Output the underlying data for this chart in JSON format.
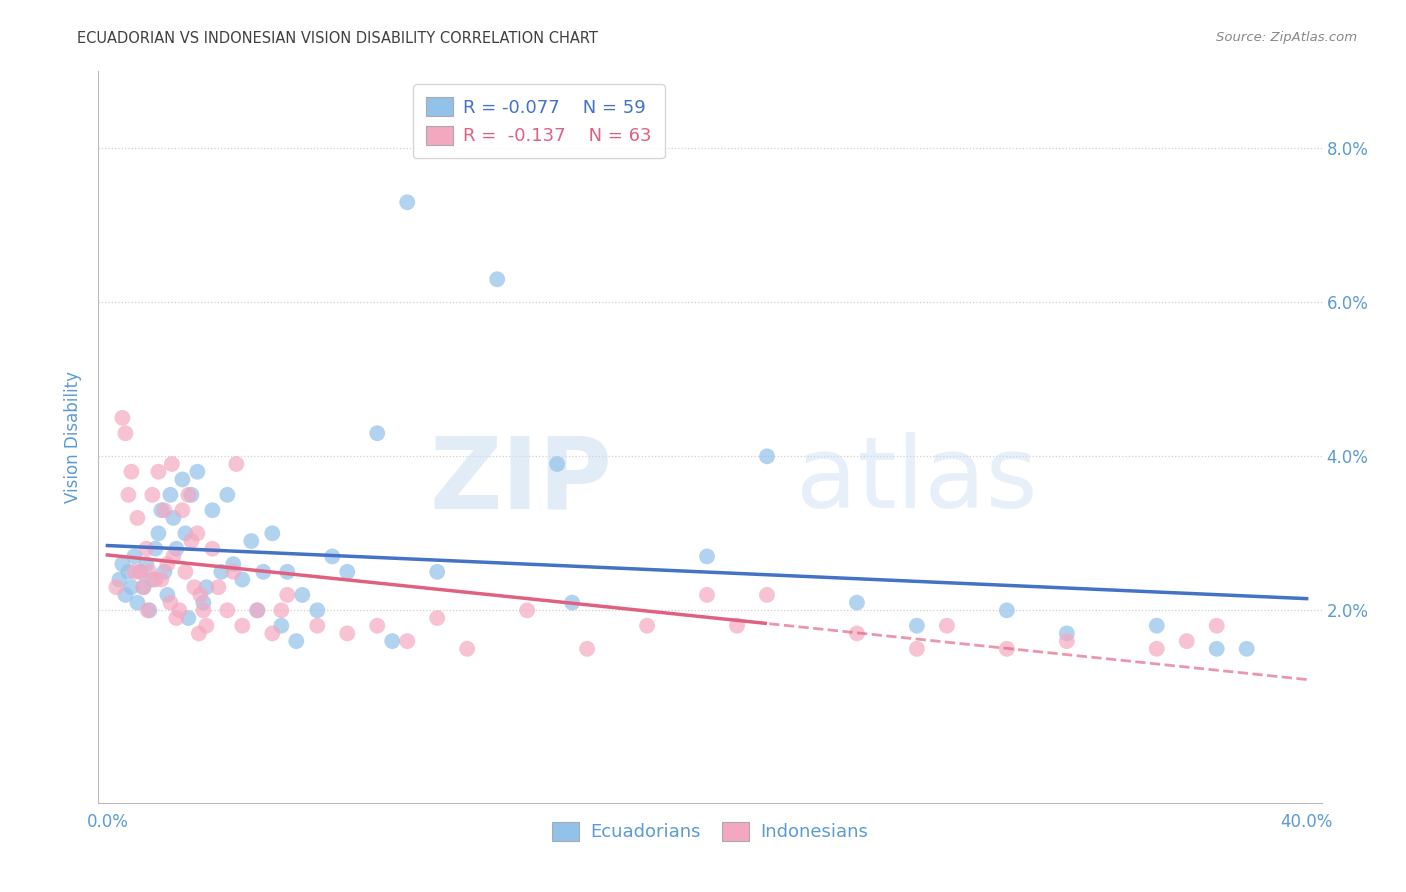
{
  "title": "ECUADORIAN VS INDONESIAN VISION DISABILITY CORRELATION CHART",
  "source": "Source: ZipAtlas.com",
  "ylabel": "Vision Disability",
  "watermark_zip": "ZIP",
  "watermark_atlas": "atlas",
  "xlim": [
    0.0,
    40.0
  ],
  "ylim": [
    0.0,
    9.0
  ],
  "yticks": [
    2.0,
    4.0,
    6.0,
    8.0
  ],
  "ytick_labels": [
    "2.0%",
    "4.0%",
    "6.0%",
    "8.0%"
  ],
  "xticks": [
    0.0,
    10.0,
    20.0,
    30.0,
    40.0
  ],
  "xtick_labels": [
    "0.0%",
    "",
    "",
    "",
    "40.0%"
  ],
  "legend_blue_label": "Ecuadorians",
  "legend_pink_label": "Indonesians",
  "R_blue": -0.077,
  "N_blue": 59,
  "R_pink": -0.137,
  "N_pink": 63,
  "blue_color": "#92C1E9",
  "pink_color": "#F4A8C0",
  "blue_line_color": "#4472C4",
  "pink_line_color": "#E06080",
  "background_color": "#FFFFFF",
  "grid_color": "#D0D0D0",
  "title_color": "#404040",
  "axis_label_color": "#5B9BD5",
  "tick_label_color": "#5B9BD5",
  "source_color": "#888888",
  "pink_dash_start": 22.0,
  "ecuadorians_x": [
    0.4,
    0.5,
    0.6,
    0.7,
    0.8,
    0.9,
    1.0,
    1.1,
    1.2,
    1.3,
    1.4,
    1.5,
    1.6,
    1.7,
    1.8,
    1.9,
    2.0,
    2.1,
    2.2,
    2.3,
    2.5,
    2.6,
    2.8,
    3.0,
    3.2,
    3.5,
    3.8,
    4.0,
    4.2,
    4.5,
    5.0,
    5.2,
    5.5,
    5.8,
    6.0,
    6.3,
    6.5,
    7.0,
    7.5,
    8.0,
    9.0,
    9.5,
    10.0,
    11.0,
    13.0,
    15.0,
    15.5,
    20.0,
    22.0,
    25.0,
    27.0,
    30.0,
    32.0,
    35.0,
    37.0,
    38.0,
    4.8,
    3.3,
    2.7
  ],
  "ecuadorians_y": [
    2.4,
    2.6,
    2.2,
    2.5,
    2.3,
    2.7,
    2.1,
    2.5,
    2.3,
    2.6,
    2.0,
    2.4,
    2.8,
    3.0,
    3.3,
    2.5,
    2.2,
    3.5,
    3.2,
    2.8,
    3.7,
    3.0,
    3.5,
    3.8,
    2.1,
    3.3,
    2.5,
    3.5,
    2.6,
    2.4,
    2.0,
    2.5,
    3.0,
    1.8,
    2.5,
    1.6,
    2.2,
    2.0,
    2.7,
    2.5,
    4.3,
    1.6,
    7.3,
    2.5,
    6.3,
    3.9,
    2.1,
    2.7,
    4.0,
    2.1,
    1.8,
    2.0,
    1.7,
    1.8,
    1.5,
    1.5,
    2.9,
    2.3,
    1.9
  ],
  "indonesians_x": [
    0.3,
    0.5,
    0.6,
    0.7,
    0.8,
    0.9,
    1.0,
    1.1,
    1.2,
    1.3,
    1.4,
    1.5,
    1.6,
    1.7,
    1.8,
    1.9,
    2.0,
    2.1,
    2.2,
    2.3,
    2.4,
    2.5,
    2.6,
    2.7,
    2.8,
    2.9,
    3.0,
    3.1,
    3.2,
    3.3,
    3.5,
    3.7,
    4.0,
    4.2,
    4.5,
    5.0,
    5.5,
    6.0,
    7.0,
    8.0,
    9.0,
    10.0,
    11.0,
    12.0,
    14.0,
    16.0,
    18.0,
    20.0,
    22.0,
    25.0,
    27.0,
    28.0,
    30.0,
    32.0,
    35.0,
    36.0,
    37.0,
    1.35,
    2.15,
    3.05,
    4.3,
    5.8,
    21.0
  ],
  "indonesians_y": [
    2.3,
    4.5,
    4.3,
    3.5,
    3.8,
    2.5,
    3.2,
    2.5,
    2.3,
    2.8,
    2.5,
    3.5,
    2.4,
    3.8,
    2.4,
    3.3,
    2.6,
    2.1,
    2.7,
    1.9,
    2.0,
    3.3,
    2.5,
    3.5,
    2.9,
    2.3,
    3.0,
    2.2,
    2.0,
    1.8,
    2.8,
    2.3,
    2.0,
    2.5,
    1.8,
    2.0,
    1.7,
    2.2,
    1.8,
    1.7,
    1.8,
    1.6,
    1.9,
    1.5,
    2.0,
    1.5,
    1.8,
    2.2,
    2.2,
    1.7,
    1.5,
    1.8,
    1.5,
    1.6,
    1.5,
    1.6,
    1.8,
    2.0,
    3.9,
    1.7,
    3.9,
    2.0,
    1.8
  ]
}
